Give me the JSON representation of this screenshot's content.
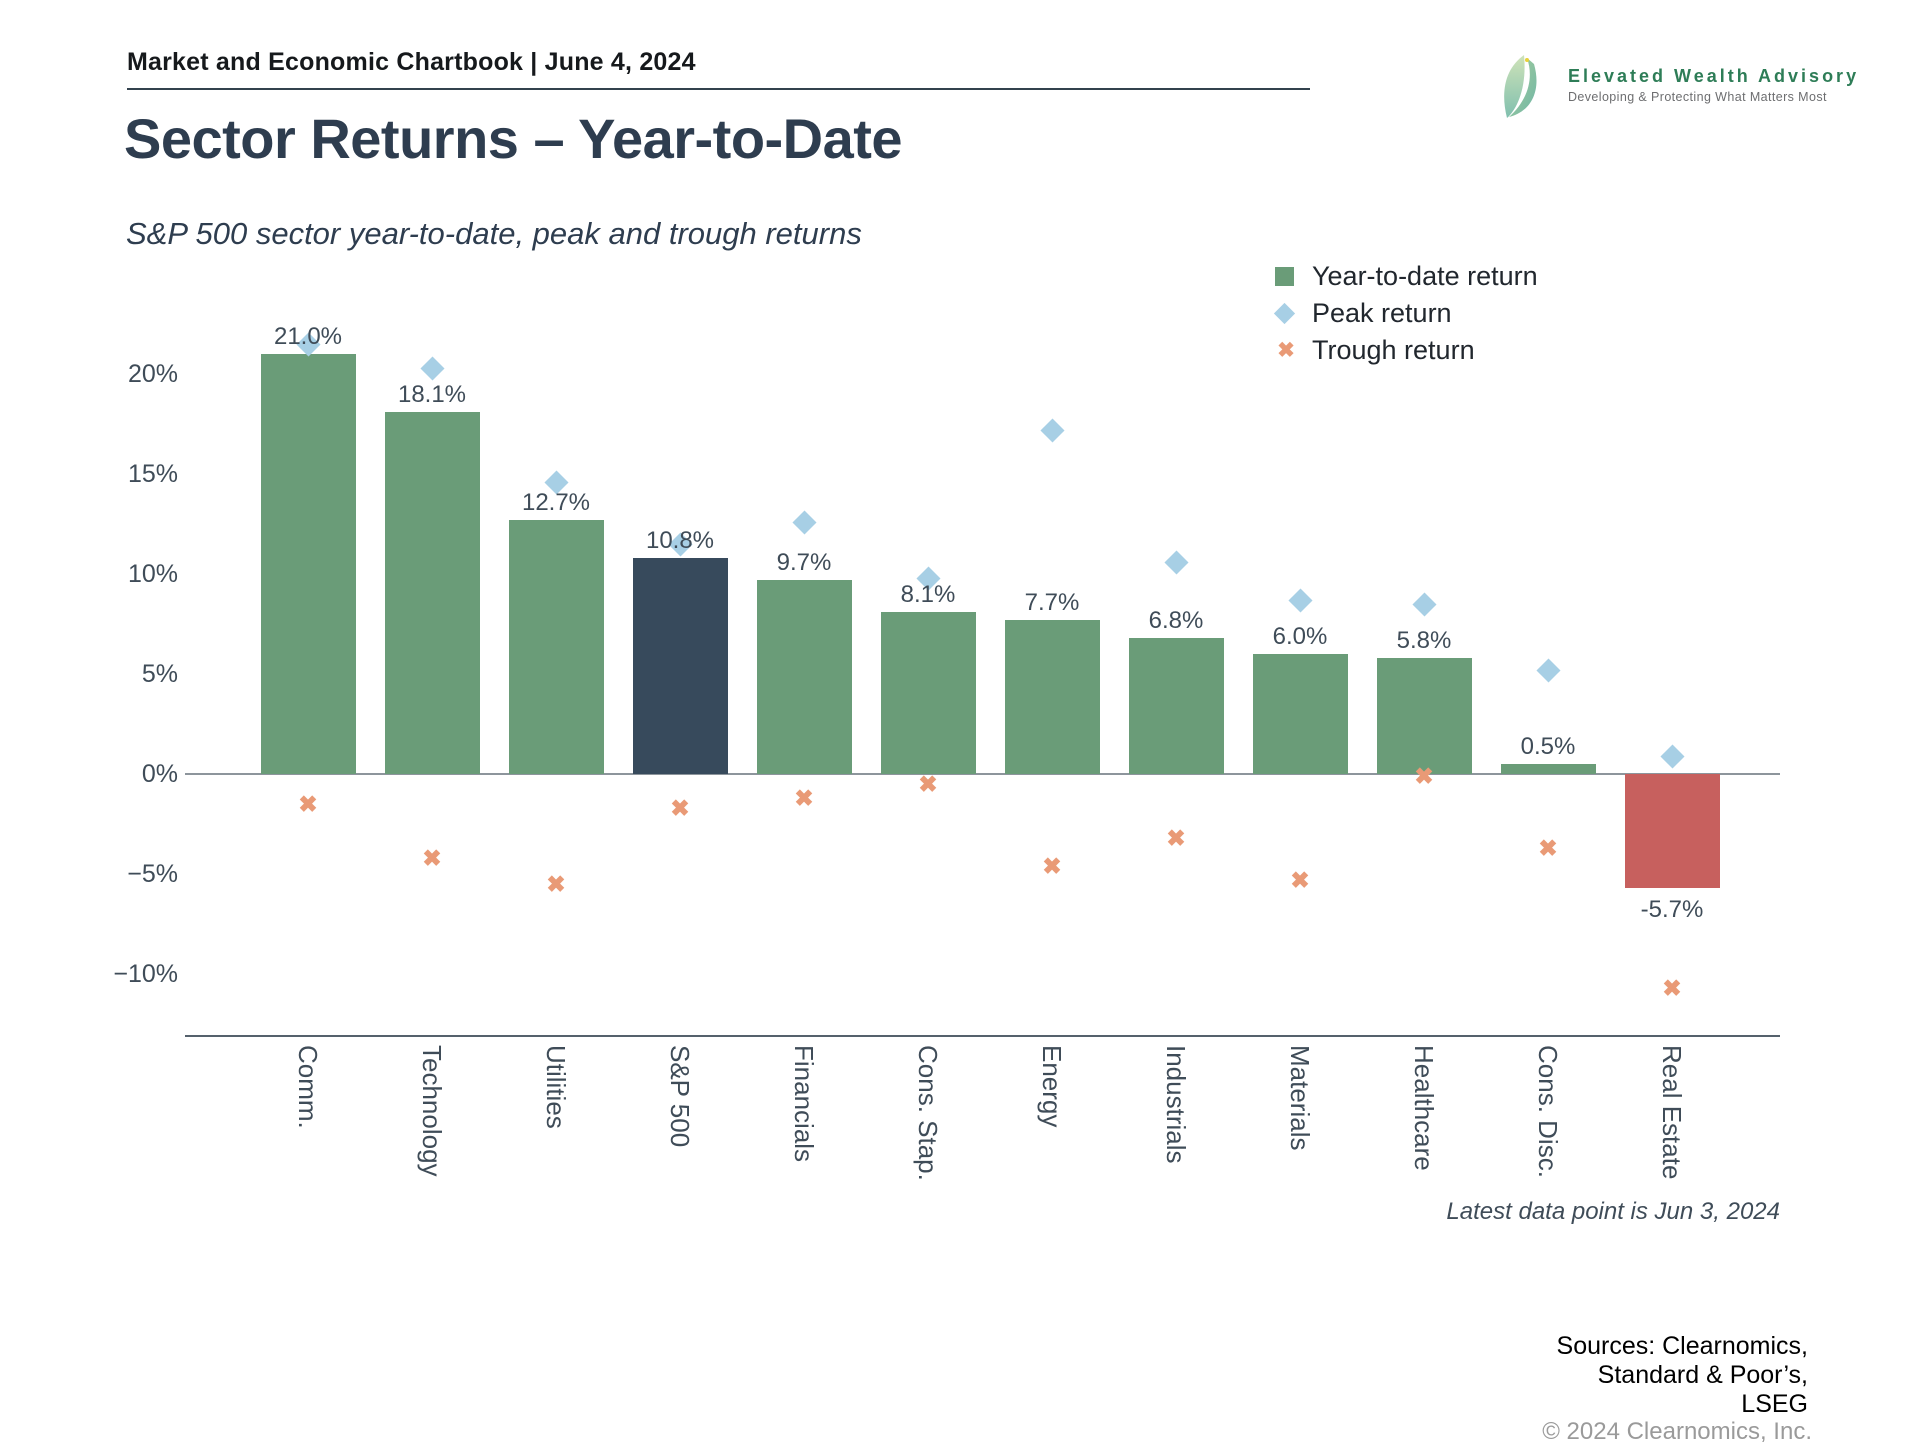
{
  "header": {
    "title": "Market and Economic Chartbook | June 4, 2024"
  },
  "logo": {
    "name": "Elevated Wealth Advisory",
    "tagline": "Developing & Protecting What Matters Most",
    "brand_green": "#2e7d57"
  },
  "page": {
    "title": "Sector Returns – Year-to-Date",
    "subtitle": "S&P 500 sector year-to-date, peak and trough returns"
  },
  "legend": {
    "items": [
      {
        "label": "Year-to-date return",
        "marker": "square"
      },
      {
        "label": "Peak return",
        "marker": "diamond"
      },
      {
        "label": "Trough return",
        "marker": "cross"
      }
    ]
  },
  "footnote": "Latest data point is Jun 3, 2024",
  "sources": {
    "lines": [
      "Sources: Clearnomics,",
      "Standard & Poor’s,",
      "LSEG"
    ],
    "copyright": "© 2024 Clearnomics, Inc."
  },
  "colors": {
    "bar_green": "#6A9C78",
    "bar_dark_index": "#374A5C",
    "bar_red_negative": "#C7605E",
    "peak_blue": "#A7CFE5",
    "trough_orange": "#E99A76",
    "title_slate": "#2e3d4f",
    "axis_text": "#3f4c58"
  },
  "chart_data": {
    "type": "bar",
    "title": "Sector Returns – Year-to-Date",
    "subtitle": "S&P 500 sector year-to-date, peak and trough returns",
    "categories": [
      "Comm.",
      "Technology",
      "Utilities",
      "S&P 500",
      "Financials",
      "Cons. Stap.",
      "Energy",
      "Industrials",
      "Materials",
      "Healthcare",
      "Cons. Disc.",
      "Real Estate"
    ],
    "series": [
      {
        "name": "Year-to-date return",
        "marker": "bar",
        "values": [
          21.0,
          18.1,
          12.7,
          10.8,
          9.7,
          8.1,
          7.7,
          6.8,
          6.0,
          5.8,
          0.5,
          -5.7
        ]
      },
      {
        "name": "Peak return",
        "marker": "diamond",
        "values": [
          21.5,
          20.3,
          14.6,
          11.5,
          12.6,
          9.8,
          17.2,
          10.6,
          8.7,
          8.5,
          5.2,
          0.9
        ]
      },
      {
        "name": "Trough return",
        "marker": "cross",
        "values": [
          -1.5,
          -4.2,
          -5.5,
          -1.7,
          -1.2,
          -0.5,
          -4.6,
          -3.2,
          -5.3,
          -0.1,
          -3.7,
          -10.7
        ]
      }
    ],
    "bar_labels": [
      "21.0%",
      "18.1%",
      "12.7%",
      "10.8%",
      "9.7%",
      "8.1%",
      "7.7%",
      "6.8%",
      "6.0%",
      "5.8%",
      "0.5%",
      "-5.7%"
    ],
    "bar_colors": {
      "default": "#6A9C78",
      "S&P 500": "#374A5C",
      "Real Estate": "#C7605E"
    },
    "y_ticks": [
      {
        "value": 20,
        "label": "20%"
      },
      {
        "value": 15,
        "label": "15%"
      },
      {
        "value": 10,
        "label": "10%"
      },
      {
        "value": 5,
        "label": "5%"
      },
      {
        "value": 0,
        "label": "0%"
      },
      {
        "value": -5,
        "label": "−5%"
      },
      {
        "value": -10,
        "label": "−10%"
      }
    ],
    "ylim": [
      -13,
      23.5
    ],
    "grid": false,
    "legend_position": "top-right",
    "xlabel": "",
    "ylabel": ""
  }
}
